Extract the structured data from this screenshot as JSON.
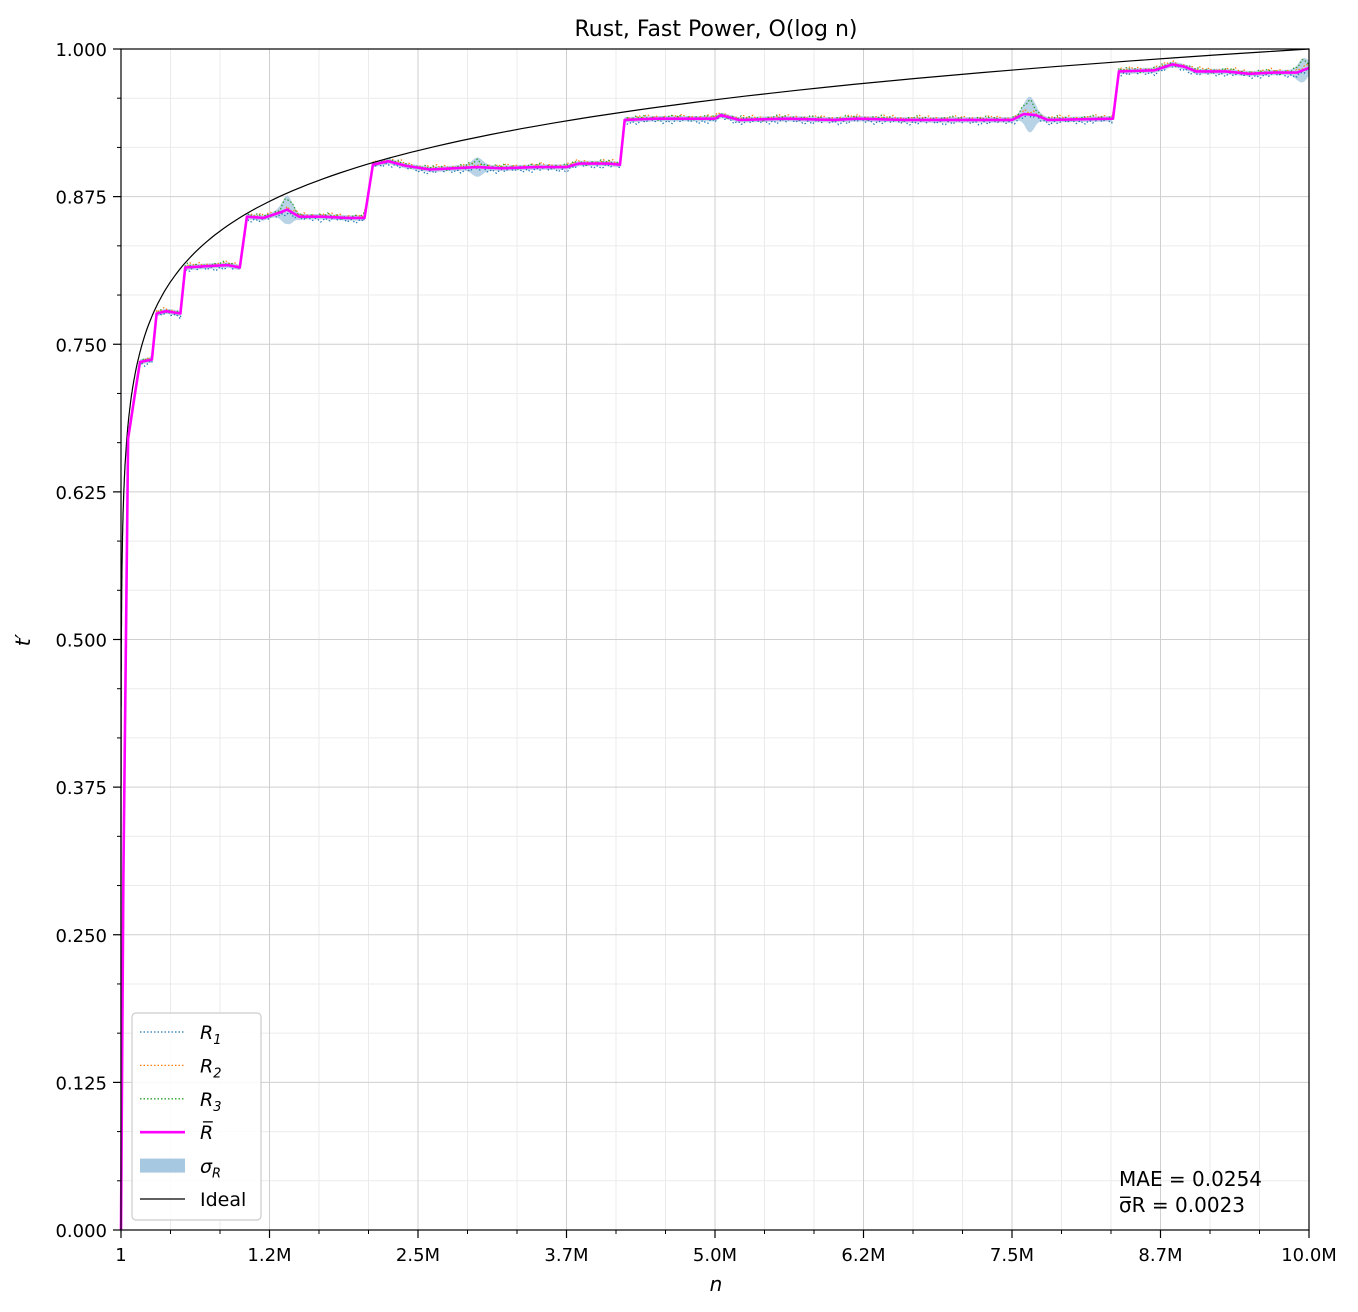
{
  "chart_data": {
    "type": "line",
    "title": "Rust, Fast Power, O(log n)",
    "xlabel": "n",
    "ylabel": "t′",
    "xlim": [
      1,
      10000000
    ],
    "ylim": [
      0,
      1
    ],
    "x_ticks": [
      {
        "value": 1,
        "label": "1"
      },
      {
        "value": 1250000,
        "label": "1.2M"
      },
      {
        "value": 2500000,
        "label": "2.5M"
      },
      {
        "value": 3750000,
        "label": "3.7M"
      },
      {
        "value": 5000000,
        "label": "5.0M"
      },
      {
        "value": 6250000,
        "label": "6.2M"
      },
      {
        "value": 7500000,
        "label": "7.5M"
      },
      {
        "value": 8750000,
        "label": "8.7M"
      },
      {
        "value": 10000000,
        "label": "10.0M"
      }
    ],
    "y_ticks": [
      {
        "value": 0,
        "label": "0.000"
      },
      {
        "value": 0.125,
        "label": "0.125"
      },
      {
        "value": 0.25,
        "label": "0.250"
      },
      {
        "value": 0.375,
        "label": "0.375"
      },
      {
        "value": 0.5,
        "label": "0.500"
      },
      {
        "value": 0.625,
        "label": "0.625"
      },
      {
        "value": 0.75,
        "label": "0.750"
      },
      {
        "value": 0.875,
        "label": "0.875"
      },
      {
        "value": 1,
        "label": "1.000"
      }
    ],
    "grid": true,
    "legend": {
      "placement": "bottom-left",
      "entries": [
        {
          "label": "R",
          "sub": "1",
          "style": "dotted",
          "color": "#1f77b4"
        },
        {
          "label": "R",
          "sub": "2",
          "style": "dotted",
          "color": "#ff7f0e"
        },
        {
          "label": "R",
          "sub": "3",
          "style": "dotted",
          "color": "#2ca02c"
        },
        {
          "label": "R̅",
          "sub": "",
          "style": "solid",
          "color": "#ff00ff"
        },
        {
          "label": "σ",
          "sub": "R",
          "style": "band",
          "color": "#a6c8e0"
        },
        {
          "label": "Ideal",
          "sub": "",
          "style": "solid",
          "color": "#000000"
        }
      ]
    },
    "annotations": [
      {
        "text": "MAE = 0.0254"
      },
      {
        "text": "σ̅R = 0.0023"
      }
    ],
    "mean_series": {
      "name": "R̅",
      "color": "#ff00ff",
      "points": [
        [
          1,
          0.0
        ],
        [
          20000,
          0.3
        ],
        [
          60000,
          0.67
        ],
        [
          120000,
          0.71
        ],
        [
          160000,
          0.735
        ],
        [
          260000,
          0.737
        ],
        [
          300000,
          0.776
        ],
        [
          380000,
          0.778
        ],
        [
          500000,
          0.776
        ],
        [
          540000,
          0.815
        ],
        [
          700000,
          0.816
        ],
        [
          900000,
          0.817
        ],
        [
          1000000,
          0.815
        ],
        [
          1060000,
          0.858
        ],
        [
          1200000,
          0.857
        ],
        [
          1350000,
          0.862
        ],
        [
          1400000,
          0.864
        ],
        [
          1500000,
          0.858
        ],
        [
          1700000,
          0.858
        ],
        [
          1900000,
          0.857
        ],
        [
          2050000,
          0.857
        ],
        [
          2120000,
          0.902
        ],
        [
          2250000,
          0.905
        ],
        [
          2400000,
          0.901
        ],
        [
          2600000,
          0.898
        ],
        [
          2800000,
          0.899
        ],
        [
          3000000,
          0.9
        ],
        [
          3200000,
          0.899
        ],
        [
          3500000,
          0.9
        ],
        [
          3750000,
          0.9
        ],
        [
          3850000,
          0.903
        ],
        [
          4100000,
          0.903
        ],
        [
          4200000,
          0.902
        ],
        [
          4240000,
          0.94
        ],
        [
          4500000,
          0.941
        ],
        [
          5000000,
          0.941
        ],
        [
          5050000,
          0.944
        ],
        [
          5200000,
          0.94
        ],
        [
          5600000,
          0.941
        ],
        [
          6000000,
          0.94
        ],
        [
          6200000,
          0.941
        ],
        [
          6600000,
          0.94
        ],
        [
          7100000,
          0.94
        ],
        [
          7500000,
          0.94
        ],
        [
          7600000,
          0.945
        ],
        [
          7700000,
          0.944
        ],
        [
          7800000,
          0.94
        ],
        [
          8350000,
          0.941
        ],
        [
          8400000,
          0.981
        ],
        [
          8700000,
          0.982
        ],
        [
          8850000,
          0.987
        ],
        [
          8950000,
          0.985
        ],
        [
          9050000,
          0.981
        ],
        [
          9300000,
          0.981
        ],
        [
          9500000,
          0.979
        ],
        [
          9700000,
          0.98
        ],
        [
          9900000,
          0.98
        ],
        [
          10000000,
          0.984
        ]
      ]
    },
    "sigma_band": {
      "name": "σR",
      "half_width": 0.0023,
      "bumps": [
        {
          "x": 1400000,
          "width": 0.01
        },
        {
          "x": 3000000,
          "width": 0.006
        },
        {
          "x": 7650000,
          "width": 0.013
        },
        {
          "x": 9950000,
          "width": 0.008
        }
      ]
    },
    "runs": [
      {
        "name": "R1",
        "color": "#1f77b4",
        "offset": -0.002
      },
      {
        "name": "R2",
        "color": "#ff7f0e",
        "offset": 0.0015
      },
      {
        "name": "R3",
        "color": "#2ca02c",
        "offset": 0.001
      }
    ],
    "ideal": {
      "name": "Ideal",
      "formula": "log(n)/log(10000000)",
      "color": "#000000"
    }
  }
}
